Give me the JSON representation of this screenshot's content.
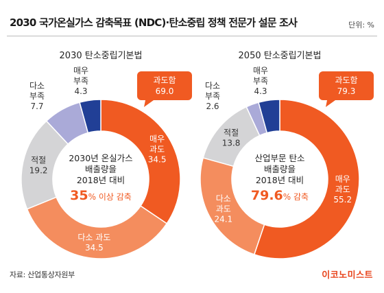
{
  "title": "2030 국가온실가스 감축목표 (NDC)·탄소중립 정책 전문가 설문 조사",
  "unit": "단위: %",
  "source": "자료: 산업통상자원부",
  "brand": "이코노미스트",
  "colors": {
    "over_heavy": "#f05a22",
    "over_light": "#f48d5e",
    "appropriate": "#d4d4d6",
    "slight_short": "#aaaad8",
    "very_short": "#213f96"
  },
  "chart_data": [
    {
      "type": "pie",
      "title": "2030 탄소중립기본법",
      "center_lines": [
        "2030년 온실가스",
        "배출량을",
        "2018년 대비"
      ],
      "center_value": "35",
      "center_unit": "% 이상 감축",
      "slices": [
        {
          "name": "매우 과도",
          "value": 34.5,
          "color": "#f05a22"
        },
        {
          "name": "다소 과도",
          "value": 34.5,
          "color": "#f48d5e"
        },
        {
          "name": "적절",
          "value": 19.2,
          "color": "#d4d4d6"
        },
        {
          "name": "다소 부족",
          "value": 7.7,
          "color": "#aaaad8"
        },
        {
          "name": "매우 부족",
          "value": 4.3,
          "color": "#213f96"
        }
      ],
      "callout": {
        "label": "과도함",
        "value": "69.0"
      }
    },
    {
      "type": "pie",
      "title": "2050 탄소중립기본법",
      "center_lines": [
        "산업부문 탄소",
        "배출량을",
        "2018년 대비"
      ],
      "center_value": "79.6",
      "center_unit": "% 감축",
      "slices": [
        {
          "name": "매우 과도",
          "value": 55.2,
          "color": "#f05a22"
        },
        {
          "name": "다소 과도",
          "value": 24.1,
          "color": "#f48d5e"
        },
        {
          "name": "적절",
          "value": 13.8,
          "color": "#d4d4d6"
        },
        {
          "name": "다소 부족",
          "value": 2.6,
          "color": "#aaaad8"
        },
        {
          "name": "매우 부족",
          "value": 4.3,
          "color": "#213f96"
        }
      ],
      "callout": {
        "label": "과도함",
        "value": "79.3"
      }
    }
  ]
}
